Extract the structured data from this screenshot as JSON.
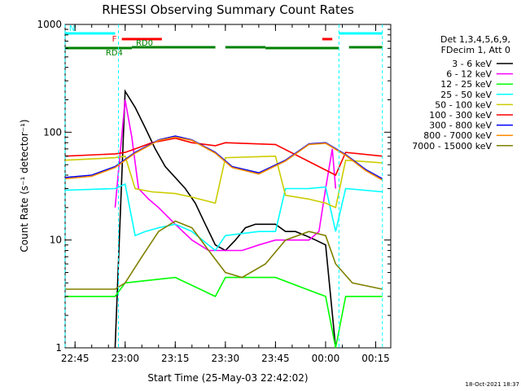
{
  "chart_data": {
    "type": "line",
    "title": "RHESSI Observing Summary Count Rates",
    "xlabel": "Start Time (25-May-03 22:42:02)",
    "ylabel": "Count Rate (s⁻¹ detector⁻¹)",
    "y_scale": "log",
    "ylim": [
      1,
      1000
    ],
    "y_ticks": [
      {
        "value": 1,
        "label": "1"
      },
      {
        "value": 10,
        "label": "10"
      },
      {
        "value": 100,
        "label": "100"
      },
      {
        "value": 1000,
        "label": "1000"
      }
    ],
    "xlim": [
      "22:42:02",
      "00:19:30"
    ],
    "x_ticks": [
      "22:45",
      "23:00",
      "23:15",
      "23:30",
      "23:45",
      "00:00",
      "00:15"
    ],
    "legend_placement": "right",
    "legend_header": [
      "Det 1,3,4,5,6,9,",
      "FDecim 1, Att 0"
    ],
    "timestamp": "18-Oct-2021 18:37",
    "series": [
      {
        "name": "3 - 6 keV",
        "color": "#000000",
        "x": [
          "22:42",
          "22:54",
          "22:57",
          "23:00",
          "23:03",
          "23:06",
          "23:09",
          "23:12",
          "23:15",
          "23:18",
          "23:21",
          "23:24",
          "23:27",
          "23:30",
          "23:33",
          "23:36",
          "23:39",
          "23:42",
          "23:45",
          "23:48",
          "23:51",
          "23:54",
          "23:57",
          "00:00",
          "00:03"
        ],
        "values": [
          null,
          null,
          1,
          240,
          170,
          110,
          70,
          48,
          38,
          30,
          22,
          14,
          9,
          8,
          10,
          13,
          14,
          14,
          14,
          12,
          12,
          11,
          10,
          9,
          1
        ]
      },
      {
        "name": "6 - 12 keV",
        "color": "#ff00ff",
        "x": [
          "22:57",
          "23:00",
          "23:02",
          "23:04",
          "23:07",
          "23:10",
          "23:15",
          "23:20",
          "23:25",
          "23:30",
          "23:35",
          "23:40",
          "23:45",
          "23:50",
          "23:55",
          "23:58",
          "00:00",
          "00:02",
          "00:03"
        ],
        "values": [
          20,
          200,
          90,
          30,
          24,
          20,
          14,
          10,
          8,
          8,
          8,
          9,
          10,
          10,
          10,
          12,
          30,
          70,
          30
        ]
      },
      {
        "name": "12 - 25 keV",
        "color": "#00ff00",
        "x": [
          "22:42",
          "22:57",
          "23:00",
          "23:15",
          "23:27",
          "23:30",
          "23:45",
          "00:00",
          "00:03",
          "00:06",
          "00:17"
        ],
        "values": [
          3,
          3,
          4,
          4.5,
          3,
          4.5,
          4.5,
          3,
          1,
          3,
          3
        ]
      },
      {
        "name": "25 - 50 keV",
        "color": "#00ffff",
        "x": [
          "22:42",
          "22:57",
          "23:00",
          "23:03",
          "23:06",
          "23:10",
          "23:15",
          "23:20",
          "23:27",
          "23:30",
          "23:40",
          "23:45",
          "23:48",
          "23:55",
          "00:00",
          "00:03",
          "00:06",
          "00:17"
        ],
        "values": [
          29,
          30,
          33,
          11,
          12,
          13,
          14,
          12,
          8,
          11,
          12,
          12,
          30,
          30,
          31,
          12,
          30,
          28
        ]
      },
      {
        "name": "50 - 100 keV",
        "color": "#cccc00",
        "x": [
          "22:42",
          "22:57",
          "23:00",
          "23:03",
          "23:08",
          "23:15",
          "23:20",
          "23:27",
          "23:30",
          "23:45",
          "23:48",
          "23:55",
          "00:00",
          "00:03",
          "00:06",
          "00:17"
        ],
        "values": [
          55,
          58,
          60,
          30,
          28,
          27,
          25,
          22,
          58,
          60,
          26,
          24,
          22,
          20,
          55,
          52
        ]
      },
      {
        "name": "100 - 300 keV",
        "color": "#ff0000",
        "x": [
          "22:42",
          "22:57",
          "23:00",
          "23:03",
          "23:08",
          "23:15",
          "23:20",
          "23:27",
          "23:30",
          "23:45",
          "00:03",
          "00:06",
          "00:17"
        ],
        "values": [
          60,
          63,
          65,
          70,
          80,
          88,
          80,
          75,
          80,
          77,
          40,
          65,
          60
        ]
      },
      {
        "name": "300 - 800 keV",
        "color": "#0000ff",
        "x": [
          "22:42",
          "22:50",
          "22:57",
          "23:03",
          "23:10",
          "23:15",
          "23:20",
          "23:27",
          "23:32",
          "23:40",
          "23:48",
          "23:55",
          "00:00",
          "00:06",
          "00:12",
          "00:17"
        ],
        "values": [
          38,
          40,
          48,
          65,
          85,
          92,
          85,
          65,
          48,
          42,
          55,
          78,
          80,
          62,
          45,
          37
        ]
      },
      {
        "name": "800 - 7000 keV",
        "color": "#ff8c00",
        "x": [
          "22:42",
          "22:50",
          "22:57",
          "23:03",
          "23:10",
          "23:15",
          "23:20",
          "23:27",
          "23:32",
          "23:40",
          "23:48",
          "23:55",
          "00:00",
          "00:06",
          "00:12",
          "00:17"
        ],
        "values": [
          37,
          39,
          47,
          64,
          84,
          90,
          84,
          64,
          47,
          41,
          54,
          77,
          79,
          61,
          44,
          36
        ]
      },
      {
        "name": "7000 - 15000 keV",
        "color": "#808000",
        "x": [
          "22:42",
          "22:57",
          "23:00",
          "23:05",
          "23:10",
          "23:15",
          "23:20",
          "23:25",
          "23:30",
          "23:35",
          "23:42",
          "23:48",
          "23:55",
          "00:00",
          "00:03",
          "00:08",
          "00:17"
        ],
        "values": [
          3.5,
          3.5,
          4,
          7,
          12,
          15,
          13,
          8,
          5,
          4.5,
          6,
          10,
          12,
          11,
          6,
          4,
          3.5
        ]
      }
    ],
    "attenuator_bars": [
      {
        "label": "N",
        "color": "#00ffff",
        "x": [
          "22:42",
          "22:57"
        ]
      },
      {
        "label": "",
        "color": "#00ffff",
        "x": [
          "00:04",
          "00:17"
        ]
      },
      {
        "label": "F",
        "color": "#ff0000",
        "x": [
          "22:59",
          "23:11"
        ]
      },
      {
        "label": "",
        "color": "#ff0000",
        "x": [
          "23:59",
          "00:02"
        ]
      },
      {
        "label": "RD0",
        "color": "#008000",
        "x": [
          "23:02",
          "23:27"
        ]
      },
      {
        "label": "",
        "color": "#008000",
        "x": [
          "23:30",
          "23:42"
        ]
      },
      {
        "label": "",
        "color": "#008000",
        "x": [
          "00:07",
          "00:17"
        ]
      },
      {
        "label": "RD4",
        "color": "#008000",
        "x": [
          "22:42",
          "23:02"
        ]
      },
      {
        "label": "",
        "color": "#008000",
        "x": [
          "23:42",
          "00:04"
        ]
      }
    ],
    "vertical_markers": [
      {
        "color": "#00ffff",
        "x": "22:42"
      },
      {
        "color": "#00ffff",
        "x": "22:58"
      },
      {
        "color": "#00ffff",
        "x": "00:04"
      },
      {
        "color": "#00ffff",
        "x": "00:17"
      }
    ]
  }
}
